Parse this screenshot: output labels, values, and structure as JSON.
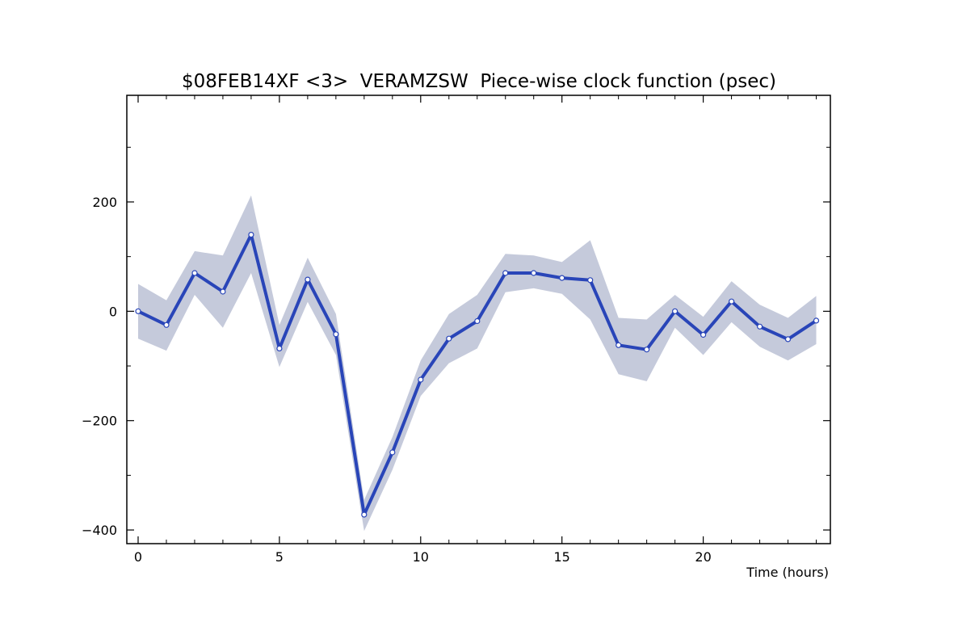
{
  "chart_data": {
    "type": "line",
    "title": "$08FEB14XF <3>  VERAMZSW  Piece-wise clock function (psec)",
    "xlabel": "Time (hours)",
    "ylabel": "",
    "xlim": [
      -0.4,
      24.5
    ],
    "ylim": [
      -425,
      395
    ],
    "x_ticks": [
      0,
      5,
      10,
      15,
      20
    ],
    "y_ticks": [
      -400,
      -200,
      0,
      200
    ],
    "grid": false,
    "series": [
      {
        "x": [
          0,
          1,
          2,
          3,
          4,
          5,
          6,
          7,
          8,
          9,
          10,
          11,
          12,
          13,
          14,
          15,
          16,
          17,
          18,
          19,
          20,
          21,
          22,
          23,
          24
        ],
        "values": [
          0,
          -25,
          70,
          36,
          140,
          -68,
          58,
          -42,
          -372,
          -258,
          -125,
          -50,
          -18,
          70,
          70,
          61,
          57,
          -62,
          -70,
          0,
          -43,
          18,
          -28,
          -51,
          -17
        ],
        "upper": [
          50,
          20,
          110,
          102,
          212,
          -25,
          98,
          -5,
          -345,
          -230,
          -90,
          -5,
          30,
          105,
          102,
          90,
          130,
          -12,
          -15,
          30,
          -10,
          55,
          12,
          -12,
          28
        ],
        "lower": [
          -50,
          -72,
          30,
          -30,
          70,
          -102,
          17,
          -80,
          -402,
          -290,
          -155,
          -95,
          -68,
          35,
          42,
          32,
          -15,
          -115,
          -128,
          -30,
          -80,
          -20,
          -65,
          -90,
          -60
        ]
      }
    ],
    "colors": {
      "line": "#2945b8",
      "band": "#c5cadb",
      "marker_fill": "#ffffff"
    }
  }
}
